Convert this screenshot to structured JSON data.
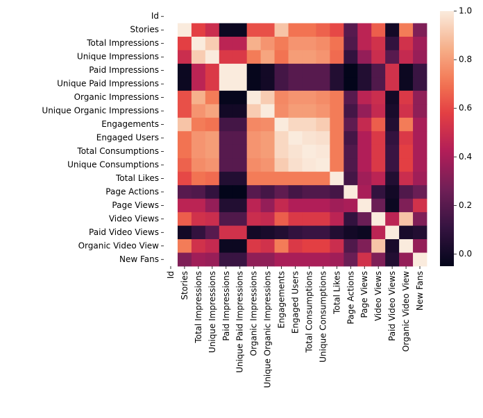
{
  "chart_data": {
    "type": "heatmap",
    "title": "",
    "xlabel": "",
    "ylabel": "",
    "colormap": "rocket",
    "colorbar": {
      "vmin": -0.05,
      "vmax": 1.0,
      "ticks": [
        "0.0",
        "0.2",
        "0.4",
        "0.6",
        "0.8",
        "1.0"
      ]
    },
    "y_labels": [
      "Id",
      "Stories",
      "Total Impressions",
      "Unique Impressions",
      "Paid Impressions",
      "Unique Paid Impressions",
      "Organic Impressions",
      "Unique Organic Impressions",
      "Engagements",
      "Engaged Users",
      "Total Consumptions",
      "Unique Consumptions",
      "Total Likes",
      "Page Actions",
      "Page Views",
      "Video Views",
      "Paid Video Views",
      "Organic Video View",
      "New Fans"
    ],
    "x_labels": [
      "Id",
      "Stories",
      "Total Impressions",
      "Unique Impressions",
      "Paid Impressions",
      "Unique Paid Impressions",
      "Organic Impressions",
      "Unique Organic Impressions",
      "Engagements",
      "Engaged Users",
      "Total Consumptions",
      "Unique Consumptions",
      "Total Likes",
      "Page Actions",
      "Page Views",
      "Video Views",
      "Paid Video Views",
      "Organic Video View",
      "New Fans"
    ],
    "values": [
      [
        null,
        null,
        null,
        null,
        null,
        null,
        null,
        null,
        null,
        null,
        null,
        null,
        null,
        null,
        null,
        null,
        null,
        null,
        null
      ],
      [
        null,
        1.0,
        0.58,
        0.5,
        -0.02,
        -0.02,
        0.62,
        0.62,
        0.9,
        0.7,
        0.7,
        0.66,
        0.6,
        0.2,
        0.45,
        0.65,
        0.0,
        0.72,
        0.3
      ],
      [
        null,
        0.58,
        1.0,
        0.92,
        0.45,
        0.45,
        0.85,
        0.78,
        0.72,
        0.78,
        0.78,
        0.76,
        0.7,
        0.18,
        0.45,
        0.52,
        0.1,
        0.52,
        0.38
      ],
      [
        null,
        0.5,
        0.92,
        1.0,
        0.55,
        0.55,
        0.72,
        0.82,
        0.7,
        0.8,
        0.8,
        0.78,
        0.68,
        0.1,
        0.35,
        0.5,
        0.2,
        0.48,
        0.36
      ],
      [
        null,
        -0.02,
        0.45,
        0.55,
        1.0,
        1.0,
        -0.04,
        0.0,
        0.15,
        0.2,
        0.2,
        0.2,
        0.05,
        -0.05,
        0.05,
        0.18,
        0.52,
        -0.02,
        0.12
      ],
      [
        null,
        -0.02,
        0.45,
        0.55,
        1.0,
        1.0,
        -0.04,
        0.0,
        0.15,
        0.2,
        0.2,
        0.2,
        0.05,
        -0.05,
        0.05,
        0.18,
        0.52,
        -0.02,
        0.12
      ],
      [
        null,
        0.62,
        0.85,
        0.72,
        -0.04,
        -0.04,
        1.0,
        0.92,
        0.75,
        0.78,
        0.78,
        0.76,
        0.72,
        0.2,
        0.45,
        0.5,
        0.0,
        0.55,
        0.34
      ],
      [
        null,
        0.62,
        0.78,
        0.82,
        0.0,
        0.0,
        0.92,
        1.0,
        0.76,
        0.8,
        0.8,
        0.78,
        0.72,
        0.15,
        0.35,
        0.48,
        0.02,
        0.52,
        0.34
      ],
      [
        null,
        0.9,
        0.72,
        0.7,
        0.15,
        0.15,
        0.75,
        0.76,
        1.0,
        0.95,
        0.95,
        0.92,
        0.72,
        0.22,
        0.48,
        0.65,
        0.05,
        0.72,
        0.4
      ],
      [
        null,
        0.7,
        0.78,
        0.8,
        0.2,
        0.2,
        0.78,
        0.8,
        0.95,
        1.0,
        0.98,
        0.97,
        0.72,
        0.15,
        0.42,
        0.55,
        0.1,
        0.55,
        0.4
      ],
      [
        null,
        0.7,
        0.78,
        0.8,
        0.2,
        0.2,
        0.78,
        0.8,
        0.95,
        0.98,
        1.0,
        0.99,
        0.72,
        0.18,
        0.42,
        0.55,
        0.12,
        0.58,
        0.4
      ],
      [
        null,
        0.66,
        0.76,
        0.78,
        0.2,
        0.2,
        0.76,
        0.78,
        0.92,
        0.97,
        0.99,
        1.0,
        0.72,
        0.18,
        0.42,
        0.55,
        0.12,
        0.58,
        0.4
      ],
      [
        null,
        0.6,
        0.7,
        0.68,
        0.05,
        0.05,
        0.72,
        0.72,
        0.72,
        0.72,
        0.72,
        0.72,
        1.0,
        0.15,
        0.38,
        0.45,
        0.05,
        0.5,
        0.38
      ],
      [
        null,
        0.2,
        0.18,
        0.1,
        -0.05,
        -0.05,
        0.2,
        0.15,
        0.22,
        0.15,
        0.18,
        0.18,
        0.15,
        1.0,
        0.4,
        0.1,
        0.0,
        0.18,
        0.25
      ],
      [
        null,
        0.45,
        0.45,
        0.35,
        0.05,
        0.05,
        0.45,
        0.35,
        0.48,
        0.42,
        0.42,
        0.42,
        0.38,
        0.4,
        1.0,
        0.25,
        -0.02,
        0.3,
        0.52
      ],
      [
        null,
        0.65,
        0.52,
        0.5,
        0.18,
        0.18,
        0.5,
        0.48,
        0.65,
        0.55,
        0.55,
        0.55,
        0.45,
        0.1,
        0.25,
        1.0,
        0.45,
        0.9,
        0.3
      ],
      [
        null,
        0.0,
        0.1,
        0.2,
        0.52,
        0.52,
        0.0,
        0.02,
        0.05,
        0.1,
        0.12,
        0.12,
        0.05,
        0.0,
        -0.02,
        0.45,
        1.0,
        0.02,
        0.05
      ],
      [
        null,
        0.72,
        0.52,
        0.48,
        -0.02,
        -0.02,
        0.55,
        0.52,
        0.72,
        0.55,
        0.58,
        0.58,
        0.5,
        0.18,
        0.3,
        0.9,
        0.02,
        1.0,
        0.35
      ],
      [
        null,
        0.3,
        0.38,
        0.36,
        0.12,
        0.12,
        0.34,
        0.34,
        0.4,
        0.4,
        0.4,
        0.4,
        0.38,
        0.25,
        0.52,
        0.3,
        0.05,
        0.35,
        1.0
      ]
    ]
  }
}
